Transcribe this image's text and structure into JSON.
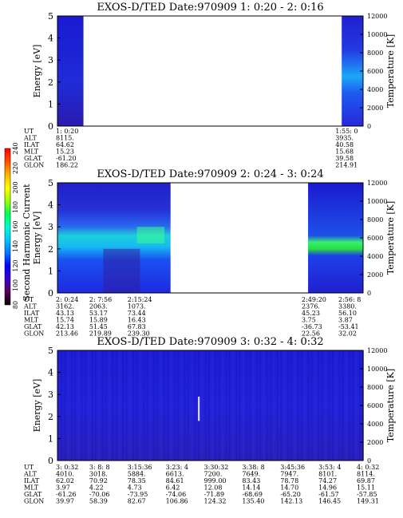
{
  "chart_data": [
    {
      "type": "heatmap",
      "title": "EXOS-D/TED   Date:970909  1: 0:20 - 2: 0:16",
      "ylabel": "Energy [eV]",
      "y2label": "Temperature [K]",
      "ylim": [
        0,
        5
      ],
      "y2lim": [
        0,
        12000
      ],
      "yticks": [
        "0",
        "1",
        "2",
        "3",
        "4",
        "5"
      ],
      "y2ticks": [
        "0",
        "2000",
        "4000",
        "6000",
        "8000",
        "10000",
        "12000"
      ],
      "data_spans": [
        [
          0.0,
          0.085
        ],
        [
          0.93,
          1.0
        ]
      ],
      "info_labels": [
        "UT",
        "ALT",
        "ILAT",
        "MLT",
        "GLAT",
        "GLON"
      ],
      "info_columns": [
        {
          "pos": 0.0,
          "values": [
            "1: 0:20",
            "8115.",
            "64.62",
            "15.23",
            "-61.20",
            "186.22"
          ]
        },
        {
          "pos": 0.93,
          "values": [
            "1:55: 0",
            "3935.",
            "40.58",
            "15.68",
            "39.58",
            "214.91"
          ]
        }
      ]
    },
    {
      "type": "heatmap",
      "title": "EXOS-D/TED   Date:970909  2: 0:24 - 3: 0:24",
      "ylabel": "Energy [eV]",
      "y2label": "Temperature [K]",
      "ylim": [
        0,
        5
      ],
      "y2lim": [
        0,
        12000
      ],
      "yticks": [
        "0",
        "1",
        "2",
        "3",
        "4",
        "5"
      ],
      "y2ticks": [
        "0",
        "2000",
        "4000",
        "6000",
        "8000",
        "10000",
        "12000"
      ],
      "data_spans": [
        [
          0.0,
          0.37
        ],
        [
          0.82,
          1.0
        ]
      ],
      "info_labels": [
        "UT",
        "ALT",
        "ILAT",
        "MLT",
        "GLAT",
        "GLON"
      ],
      "info_columns": [
        {
          "pos": 0.0,
          "values": [
            "2: 0:24",
            "3162.",
            "43.13",
            "15.74",
            "42.13",
            "213.46"
          ]
        },
        {
          "pos": 0.125,
          "values": [
            "2: 7:56",
            "2063.",
            "53.17",
            "15.89",
            "51.45",
            "219.89"
          ]
        },
        {
          "pos": 0.25,
          "values": [
            "2:15:24",
            "1073.",
            "73.44",
            "16.43",
            "67.83",
            "239.30"
          ]
        },
        {
          "pos": 0.82,
          "values": [
            "2:49:20",
            "2376.",
            "45.23",
            "3.75",
            "-36.73",
            "22.56"
          ]
        },
        {
          "pos": 0.94,
          "values": [
            "2:56: 8",
            "3380.",
            "56.10",
            "3.87",
            "-53.41",
            "32.02"
          ]
        }
      ]
    },
    {
      "type": "heatmap",
      "title": "EXOS-D/TED   Date:970909  3: 0:32 - 4: 0:32",
      "ylabel": "Energy [eV]",
      "y2label": "Temperature [K]",
      "ylim": [
        0,
        5
      ],
      "y2lim": [
        0,
        12000
      ],
      "yticks": [
        "0",
        "1",
        "2",
        "3",
        "4",
        "5"
      ],
      "y2ticks": [
        "0",
        "2000",
        "4000",
        "6000",
        "8000",
        "10000",
        "12000"
      ],
      "data_spans": [
        [
          0.0,
          1.0
        ]
      ],
      "info_labels": [
        "UT",
        "ALT",
        "ILAT",
        "MLT",
        "GLAT",
        "GLON"
      ],
      "info_columns": [
        {
          "pos": 0.0,
          "values": [
            "3: 0:32",
            "4010.",
            "62.02",
            "3.97",
            "-61.26",
            "39.97"
          ]
        },
        {
          "pos": 0.125,
          "values": [
            "3: 8: 8",
            "3018.",
            "70.92",
            "4.22",
            "-70.06",
            "58.39"
          ]
        },
        {
          "pos": 0.25,
          "values": [
            "3:15:36",
            "5884.",
            "78.35",
            "4.73",
            "-73.95",
            "82.67"
          ]
        },
        {
          "pos": 0.375,
          "values": [
            "3:23: 4",
            "6613.",
            "84.61",
            "6.42",
            "-74.06",
            "106.86"
          ]
        },
        {
          "pos": 0.5,
          "values": [
            "3:30:32",
            "7200.",
            "999.00",
            "12.08",
            "-71.89",
            "124.32"
          ]
        },
        {
          "pos": 0.625,
          "values": [
            "3:38: 8",
            "7649.",
            "83.43",
            "14.14",
            "-68.69",
            "135.40"
          ]
        },
        {
          "pos": 0.75,
          "values": [
            "3:45:36",
            "7947.",
            "78.78",
            "14.70",
            "-65.20",
            "142.13"
          ]
        },
        {
          "pos": 0.875,
          "values": [
            "3:53: 4",
            "8101.",
            "74.27",
            "14.96",
            "-61.57",
            "146.45"
          ]
        },
        {
          "pos": 1.0,
          "values": [
            "4: 0:32",
            "8114.",
            "69.87",
            "15.11",
            "-57.85",
            "149.31"
          ]
        }
      ]
    }
  ],
  "colorbar": {
    "label": "Second Harmonic Current",
    "ticks": [
      "80",
      "100",
      "120",
      "140",
      "160",
      "180",
      "200",
      "220",
      "240"
    ],
    "colors": [
      "#000000",
      "#5a005a",
      "#3b00c8",
      "#0000ff",
      "#0078ff",
      "#00c8ff",
      "#00ffc8",
      "#00ff50",
      "#a0ff00",
      "#ffff00",
      "#ffb400",
      "#ff5000",
      "#ff0000"
    ]
  }
}
